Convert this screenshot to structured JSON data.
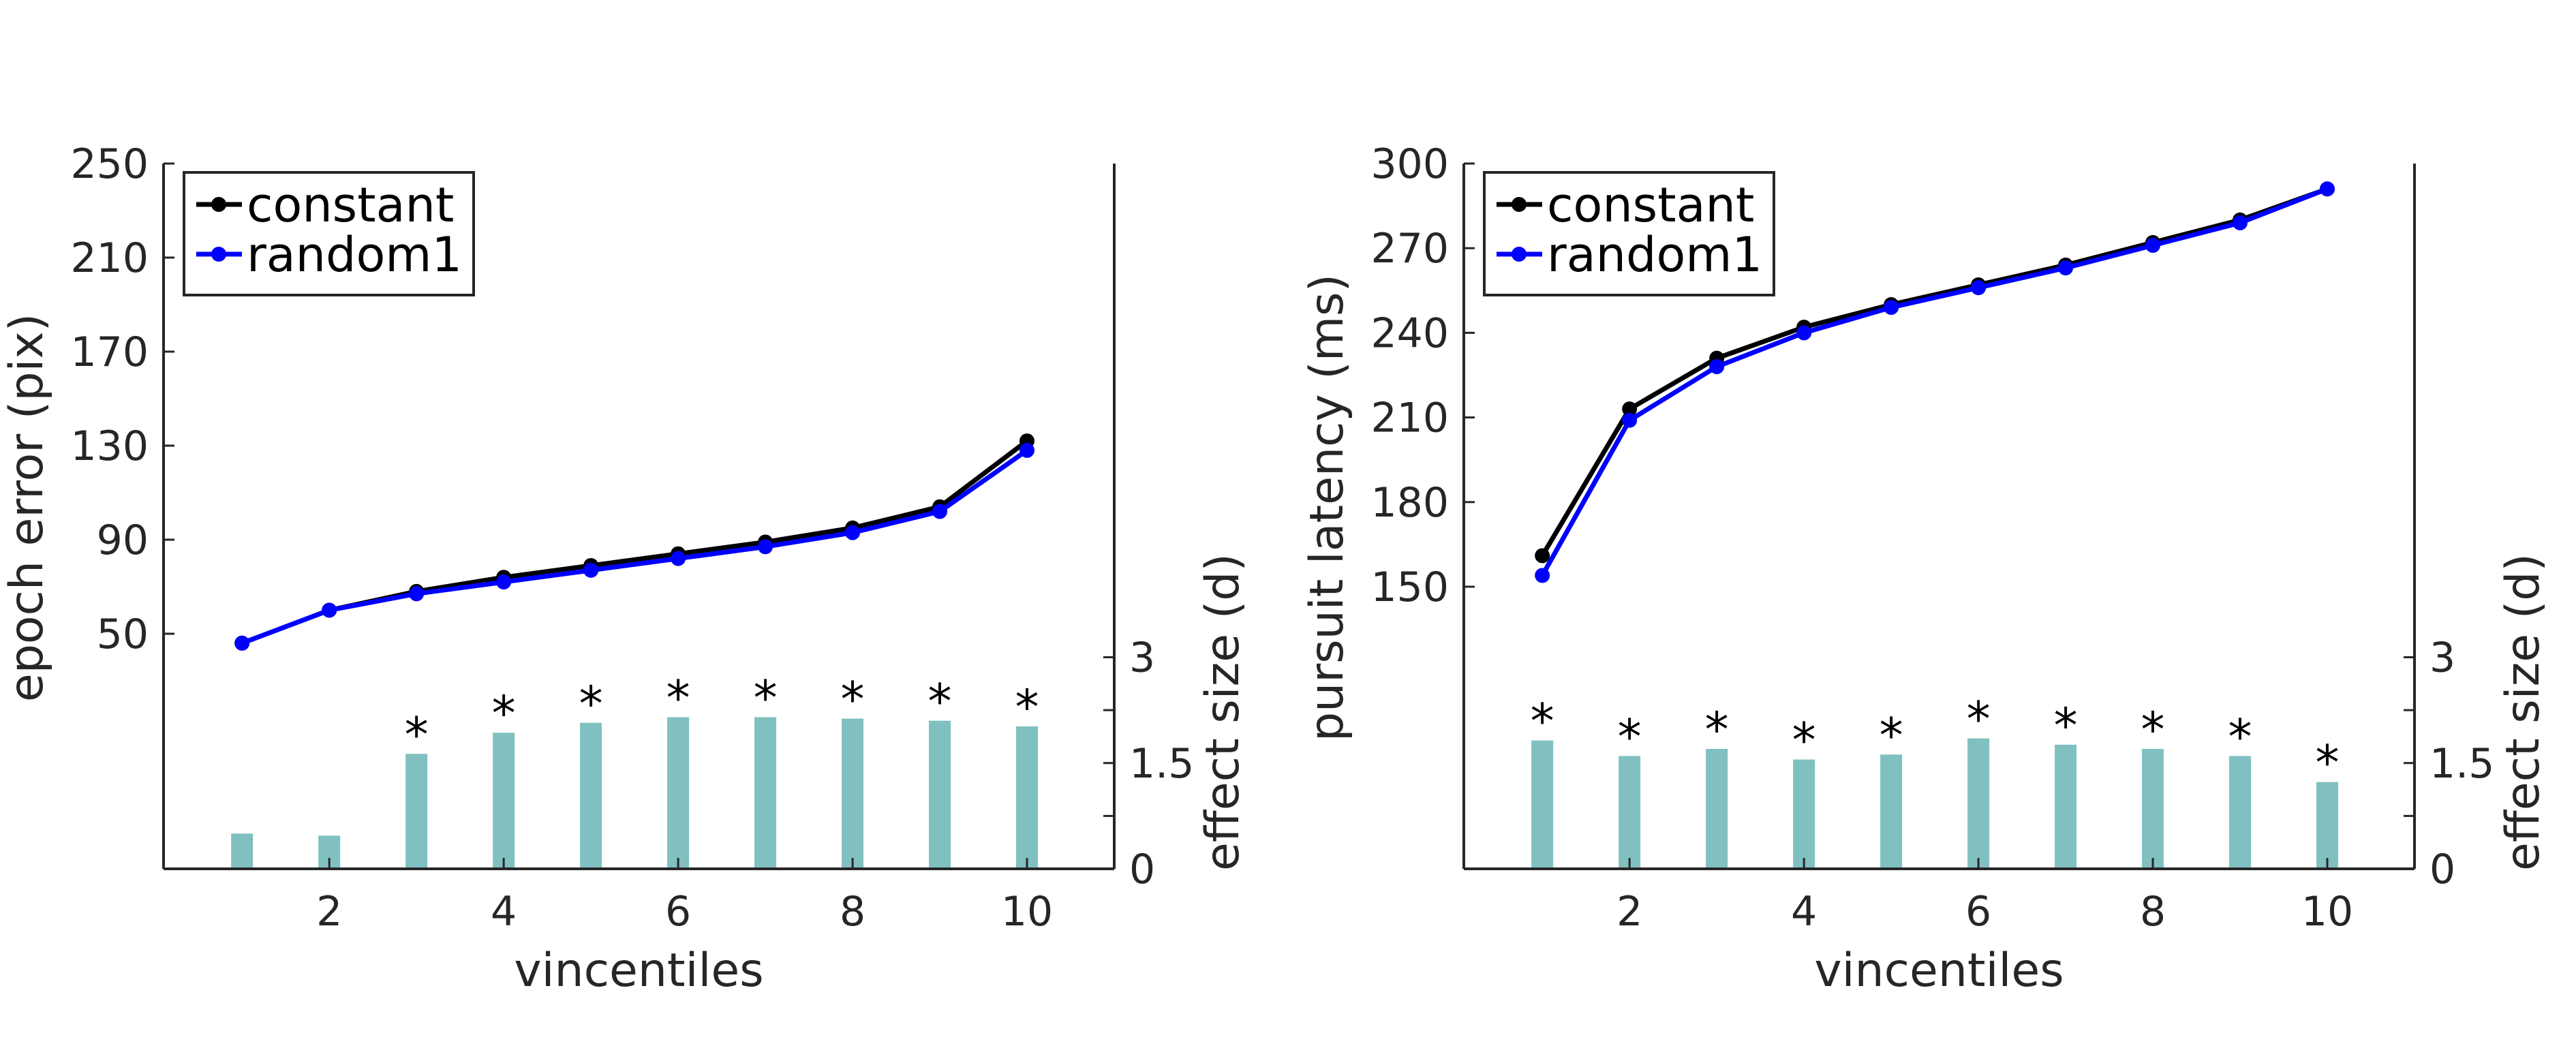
{
  "chart_data": [
    {
      "type": "line",
      "x": [
        1,
        2,
        3,
        4,
        5,
        6,
        7,
        8,
        9,
        10
      ],
      "xlabel": "vincentiles",
      "xticks": [
        2,
        4,
        6,
        8,
        10
      ],
      "xlim": [
        0.1,
        11
      ],
      "ylabel": "epoch error (pix)",
      "yticks": [
        50,
        90,
        130,
        170,
        210,
        250
      ],
      "ylim": [
        -50,
        250
      ],
      "y2label": "effect size (d)",
      "y2ticks": [
        0,
        1.5,
        3
      ],
      "y2lim": [
        0,
        10
      ],
      "grid": false,
      "legend_position": "top-left",
      "series": [
        {
          "name": "constant",
          "color": "#000000",
          "values": [
            46,
            60,
            68,
            74,
            79,
            84,
            89,
            95,
            104,
            132
          ]
        },
        {
          "name": "random1",
          "color": "#0000ff",
          "values": [
            46,
            60,
            67,
            72,
            77,
            82,
            87,
            93,
            102,
            128
          ]
        }
      ],
      "bars": {
        "color": "#80c0c0",
        "values": [
          0.5,
          0.47,
          1.63,
          1.93,
          2.07,
          2.15,
          2.15,
          2.13,
          2.1,
          2.02
        ],
        "significant": [
          false,
          false,
          true,
          true,
          true,
          true,
          true,
          true,
          true,
          true
        ],
        "marker": "*"
      }
    },
    {
      "type": "line",
      "x": [
        1,
        2,
        3,
        4,
        5,
        6,
        7,
        8,
        9,
        10
      ],
      "xlabel": "vincentiles",
      "xticks": [
        2,
        4,
        6,
        8,
        10
      ],
      "xlim": [
        0.1,
        11
      ],
      "ylabel": "pursuit latency (ms)",
      "yticks": [
        150,
        180,
        210,
        240,
        270,
        300
      ],
      "ylim": [
        50,
        300
      ],
      "y2label": "effect size (d)",
      "y2ticks": [
        0,
        1.5,
        3
      ],
      "y2lim": [
        0,
        10
      ],
      "grid": false,
      "legend_position": "top-left",
      "series": [
        {
          "name": "constant",
          "color": "#000000",
          "values": [
            161,
            213,
            231,
            242,
            250,
            257,
            264,
            272,
            280,
            291
          ]
        },
        {
          "name": "random1",
          "color": "#0000ff",
          "values": [
            154,
            209,
            228,
            240,
            249,
            256,
            263,
            271,
            279,
            291
          ]
        }
      ],
      "bars": {
        "color": "#80c0c0",
        "values": [
          1.82,
          1.6,
          1.7,
          1.55,
          1.62,
          1.85,
          1.76,
          1.7,
          1.6,
          1.23
        ],
        "significant": [
          true,
          true,
          true,
          true,
          true,
          true,
          true,
          true,
          true,
          true
        ],
        "marker": "*"
      }
    }
  ]
}
